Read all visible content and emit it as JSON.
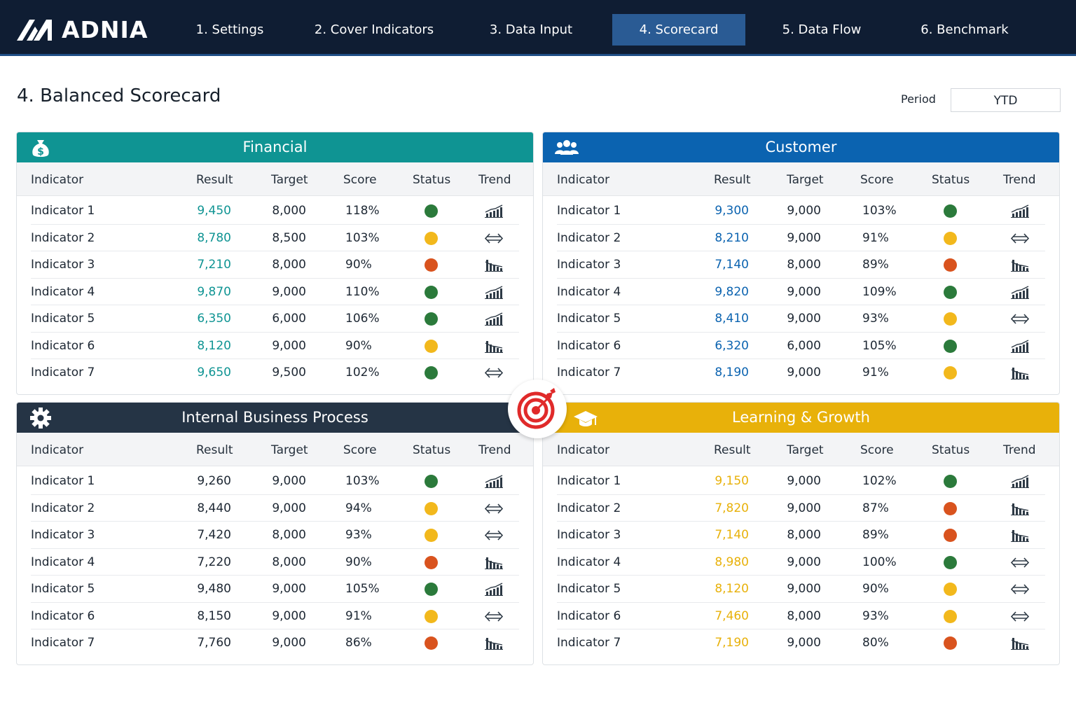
{
  "brand": {
    "name": "ADNIA"
  },
  "nav": {
    "items": [
      {
        "label": "1. Settings",
        "active": false
      },
      {
        "label": "2. Cover Indicators",
        "active": false
      },
      {
        "label": "3. Data Input",
        "active": false
      },
      {
        "label": "4. Scorecard",
        "active": true
      },
      {
        "label": "5. Data Flow",
        "active": false
      },
      {
        "label": "6. Benchmark",
        "active": false
      }
    ]
  },
  "page": {
    "title": "4. Balanced Scorecard",
    "period_label": "Period",
    "period_value": "YTD"
  },
  "colors": {
    "financial": "#0f9493",
    "customer": "#0b63b0",
    "internal": "#253445",
    "learning": "#e8b10a",
    "status_green": "#2b7a3b",
    "status_yellow": "#f2b81c",
    "status_red": "#d9531e"
  },
  "panels": [
    {
      "key": "financial",
      "title": "Financial",
      "icon": "money-bag-icon",
      "result_color": "#0f9493",
      "columns": {
        "indicator": "Indicator",
        "result": "Result",
        "target": "Target",
        "score": "Score",
        "status": "Status",
        "trend": "Trend"
      },
      "rows": [
        {
          "indicator": "Indicator 1",
          "result": "9,450",
          "target": "8,000",
          "score": "118%",
          "status": "green",
          "trend": "up"
        },
        {
          "indicator": "Indicator 2",
          "result": "8,780",
          "target": "8,500",
          "score": "103%",
          "status": "yellow",
          "trend": "flat"
        },
        {
          "indicator": "Indicator 3",
          "result": "7,210",
          "target": "8,000",
          "score": "90%",
          "status": "red",
          "trend": "down"
        },
        {
          "indicator": "Indicator 4",
          "result": "9,870",
          "target": "9,000",
          "score": "110%",
          "status": "green",
          "trend": "up"
        },
        {
          "indicator": "Indicator 5",
          "result": "6,350",
          "target": "6,000",
          "score": "106%",
          "status": "green",
          "trend": "up"
        },
        {
          "indicator": "Indicator 6",
          "result": "8,120",
          "target": "9,000",
          "score": "90%",
          "status": "yellow",
          "trend": "down"
        },
        {
          "indicator": "Indicator 7",
          "result": "9,650",
          "target": "9,500",
          "score": "102%",
          "status": "green",
          "trend": "flat"
        }
      ]
    },
    {
      "key": "customer",
      "title": "Customer",
      "icon": "users-icon",
      "result_color": "#0b63b0",
      "columns": {
        "indicator": "Indicator",
        "result": "Result",
        "target": "Target",
        "score": "Score",
        "status": "Status",
        "trend": "Trend"
      },
      "rows": [
        {
          "indicator": "Indicator 1",
          "result": "9,300",
          "target": "9,000",
          "score": "103%",
          "status": "green",
          "trend": "up"
        },
        {
          "indicator": "Indicator 2",
          "result": "8,210",
          "target": "9,000",
          "score": "91%",
          "status": "yellow",
          "trend": "flat"
        },
        {
          "indicator": "Indicator 3",
          "result": "7,140",
          "target": "8,000",
          "score": "89%",
          "status": "red",
          "trend": "down"
        },
        {
          "indicator": "Indicator 4",
          "result": "9,820",
          "target": "9,000",
          "score": "109%",
          "status": "green",
          "trend": "up"
        },
        {
          "indicator": "Indicator 5",
          "result": "8,410",
          "target": "9,000",
          "score": "93%",
          "status": "yellow",
          "trend": "flat"
        },
        {
          "indicator": "Indicator 6",
          "result": "6,320",
          "target": "6,000",
          "score": "105%",
          "status": "green",
          "trend": "up"
        },
        {
          "indicator": "Indicator 7",
          "result": "8,190",
          "target": "9,000",
          "score": "91%",
          "status": "yellow",
          "trend": "down"
        }
      ]
    },
    {
      "key": "internal",
      "title": "Internal Business Process",
      "icon": "gear-icon",
      "result_color": "#1d2733",
      "columns": {
        "indicator": "Indicator",
        "result": "Result",
        "target": "Target",
        "score": "Score",
        "status": "Status",
        "trend": "Trend"
      },
      "rows": [
        {
          "indicator": "Indicator 1",
          "result": "9,260",
          "target": "9,000",
          "score": "103%",
          "status": "green",
          "trend": "up"
        },
        {
          "indicator": "Indicator 2",
          "result": "8,440",
          "target": "9,000",
          "score": "94%",
          "status": "yellow",
          "trend": "flat"
        },
        {
          "indicator": "Indicator 3",
          "result": "7,420",
          "target": "8,000",
          "score": "93%",
          "status": "yellow",
          "trend": "flat"
        },
        {
          "indicator": "Indicator 4",
          "result": "7,220",
          "target": "8,000",
          "score": "90%",
          "status": "red",
          "trend": "down"
        },
        {
          "indicator": "Indicator 5",
          "result": "9,480",
          "target": "9,000",
          "score": "105%",
          "status": "green",
          "trend": "up"
        },
        {
          "indicator": "Indicator 6",
          "result": "8,150",
          "target": "9,000",
          "score": "91%",
          "status": "yellow",
          "trend": "flat"
        },
        {
          "indicator": "Indicator 7",
          "result": "7,760",
          "target": "9,000",
          "score": "86%",
          "status": "red",
          "trend": "down"
        }
      ]
    },
    {
      "key": "learning",
      "title": "Learning & Growth",
      "icon": "graduation-cap-icon",
      "result_color": "#e8b10a",
      "columns": {
        "indicator": "Indicator",
        "result": "Result",
        "target": "Target",
        "score": "Score",
        "status": "Status",
        "trend": "Trend"
      },
      "rows": [
        {
          "indicator": "Indicator 1",
          "result": "9,150",
          "target": "9,000",
          "score": "102%",
          "status": "green",
          "trend": "up"
        },
        {
          "indicator": "Indicator 2",
          "result": "7,820",
          "target": "9,000",
          "score": "87%",
          "status": "red",
          "trend": "down"
        },
        {
          "indicator": "Indicator 3",
          "result": "7,140",
          "target": "8,000",
          "score": "89%",
          "status": "red",
          "trend": "down"
        },
        {
          "indicator": "Indicator 4",
          "result": "8,980",
          "target": "9,000",
          "score": "100%",
          "status": "green",
          "trend": "flat"
        },
        {
          "indicator": "Indicator 5",
          "result": "8,120",
          "target": "9,000",
          "score": "90%",
          "status": "yellow",
          "trend": "flat"
        },
        {
          "indicator": "Indicator 6",
          "result": "7,460",
          "target": "8,000",
          "score": "93%",
          "status": "yellow",
          "trend": "flat"
        },
        {
          "indicator": "Indicator 7",
          "result": "7,190",
          "target": "9,000",
          "score": "80%",
          "status": "red",
          "trend": "down"
        }
      ]
    }
  ],
  "center_icon": "target-icon"
}
